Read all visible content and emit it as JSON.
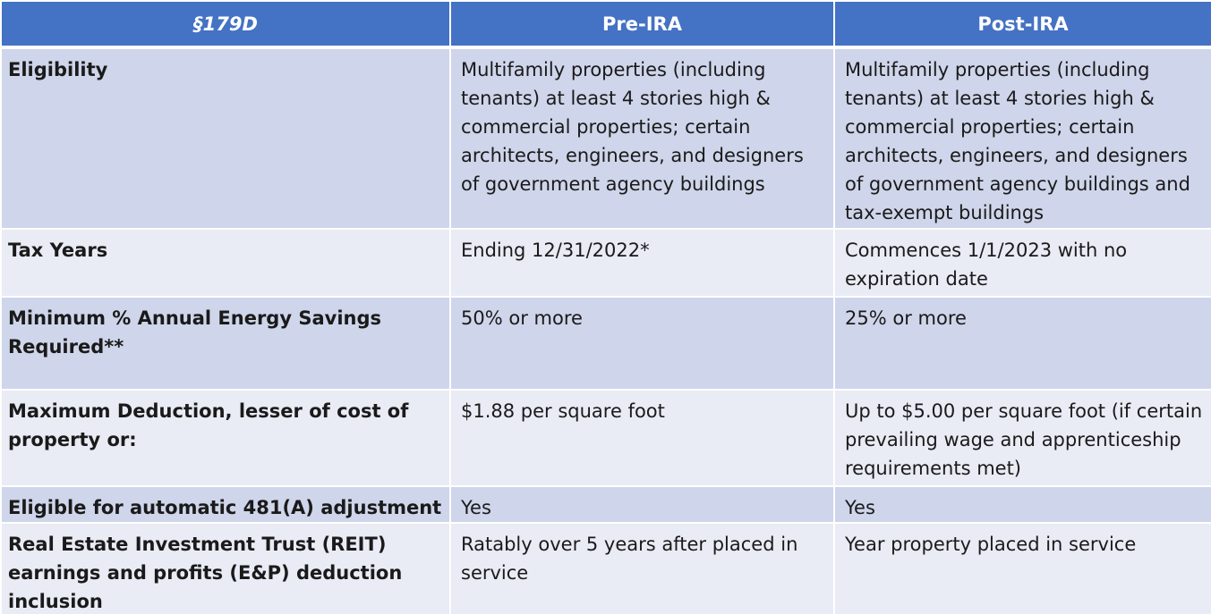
{
  "header": {
    "col1": "§179D",
    "col2": "Pre-IRA",
    "col3": "Post-IRA"
  },
  "rows": [
    {
      "label": "Eligibility",
      "pre": "Multifamily properties (including tenants) at least 4 stories high & commercial properties; certain architects, engineers, and designers of government agency buildings",
      "post": "Multifamily properties (including tenants) at least 4 stories high & commercial properties; certain architects, engineers, and designers of government agency buildings and tax-exempt buildings"
    },
    {
      "label": "Tax Years",
      "pre": "Ending 12/31/2022*",
      "post": "Commences 1/1/2023 with no expiration date"
    },
    {
      "label": "Minimum % Annual Energy Savings Required**",
      "pre": "50% or more",
      "post": "25% or more"
    },
    {
      "label": "Maximum Deduction, lesser of cost of property or:",
      "pre": "$1.88 per square foot",
      "post": "Up to $5.00 per square foot (if certain prevailing wage and apprenticeship requirements met)"
    },
    {
      "label": "Eligible for automatic 481(A) adjustment",
      "pre": "Yes",
      "post": "Yes"
    },
    {
      "label": "Real Estate Investment Trust (REIT) earnings and profits (E&P) deduction inclusion",
      "pre": "Ratably over 5 years after placed in service",
      "post": "Year property placed in service"
    }
  ],
  "colors": {
    "header_bg": "#4472c4",
    "row_dark": "#cfd5ea",
    "row_light": "#e9ebf5"
  }
}
